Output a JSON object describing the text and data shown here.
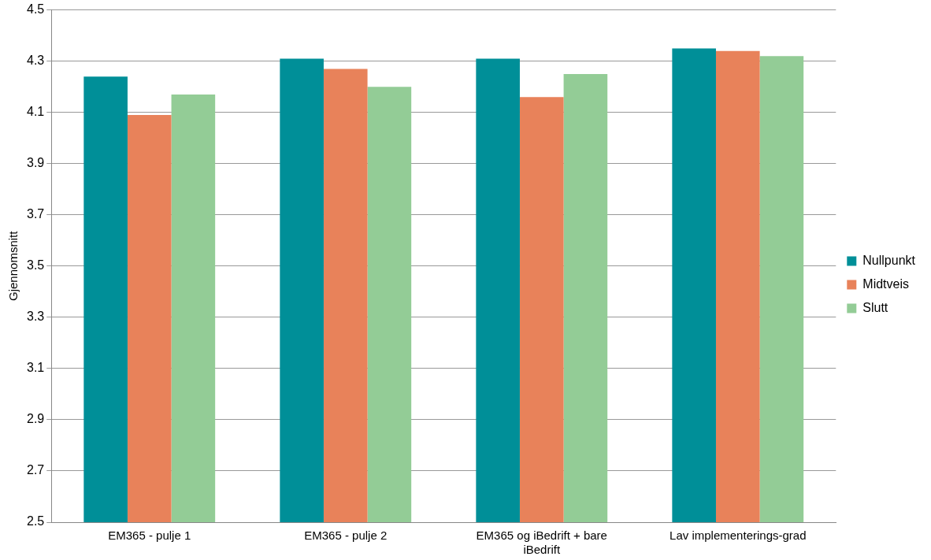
{
  "chart_data": {
    "type": "bar",
    "ylabel": "Gjennomsnitt",
    "categories": [
      "EM365 - pulje 1",
      "EM365 - pulje 2",
      "EM365 og iBedrift + bare iBedrift",
      "Lav implementerings-grad"
    ],
    "series": [
      {
        "name": "Nullpunkt",
        "color": "#008f98",
        "values": [
          4.24,
          4.31,
          4.31,
          4.35
        ]
      },
      {
        "name": "Midtveis",
        "color": "#e8825a",
        "values": [
          4.09,
          4.27,
          4.16,
          4.34
        ]
      },
      {
        "name": "Slutt",
        "color": "#93cc96",
        "values": [
          4.17,
          4.2,
          4.25,
          4.32
        ]
      }
    ],
    "ylim": [
      2.5,
      4.5
    ],
    "yticks": [
      2.5,
      2.7,
      2.9,
      3.1,
      3.3,
      3.5,
      3.7,
      3.9,
      4.1,
      4.3,
      4.5
    ],
    "grid": "y",
    "legend": "right"
  }
}
